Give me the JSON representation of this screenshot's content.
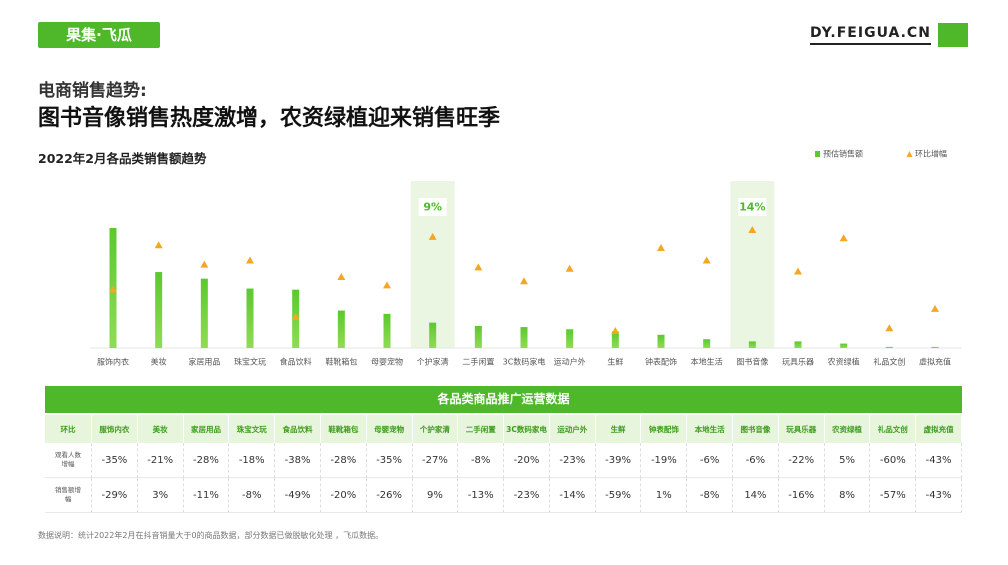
{
  "header": {
    "logo": "果集·飞瓜",
    "site": "DY.FEIGUA.CN",
    "kicker": "电商销售趋势:",
    "headline": "图书音像销售热度激增，农资绿植迎来销售旺季"
  },
  "chart_data": {
    "type": "bar",
    "title": "2022年2月各品类销售额趋势",
    "categories": [
      "服饰内衣",
      "美妆",
      "家居用品",
      "珠宝文玩",
      "食品饮料",
      "鞋靴箱包",
      "母婴宠物",
      "个护家清",
      "二手闲置",
      "3C数码家电",
      "运动户外",
      "生鲜",
      "钟表配饰",
      "本地生活",
      "图书音像",
      "玩具乐器",
      "农资绿植",
      "礼品文创",
      "虚拟充值"
    ],
    "series": [
      {
        "name": "预估销售额",
        "type": "bar",
        "color": "#5cc82e",
        "values": [
          109,
          69,
          63,
          54,
          53,
          34,
          31,
          23,
          20,
          19,
          17,
          15,
          12,
          8,
          6,
          6,
          4,
          1,
          1
        ]
      },
      {
        "name": "环比增幅",
        "type": "scatter",
        "color": "#f5a623",
        "values": [
          -29,
          3,
          -11,
          -8,
          -49,
          -20,
          -26,
          9,
          -13,
          -23,
          -14,
          -59,
          1,
          -8,
          14,
          -16,
          8,
          -57,
          -43
        ],
        "value_labels": [
          null,
          null,
          null,
          null,
          null,
          null,
          null,
          "9%",
          null,
          null,
          null,
          null,
          null,
          null,
          "14%",
          null,
          null,
          null,
          null
        ]
      }
    ]
  },
  "table": {
    "title": "各品类商品推广运营数据",
    "corner": "环比",
    "rows": [
      {
        "label": "观看人数增幅",
        "cells": [
          "-35%",
          "-21%",
          "-28%",
          "-18%",
          "-38%",
          "-28%",
          "-35%",
          "-27%",
          "-8%",
          "-20%",
          "-23%",
          "-39%",
          "-19%",
          "-6%",
          "-6%",
          "-22%",
          "5%",
          "-60%",
          "-43%"
        ]
      },
      {
        "label": "销售额增幅",
        "cells": [
          "-29%",
          "3%",
          "-11%",
          "-8%",
          "-49%",
          "-20%",
          "-26%",
          "9%",
          "-13%",
          "-23%",
          "-14%",
          "-59%",
          "1%",
          "-8%",
          "14%",
          "-16%",
          "8%",
          "-57%",
          "-43%"
        ]
      }
    ]
  },
  "footer": {
    "note": "数据说明：统计2022年2月在抖音销量大于0的商品数据，部分数据已做脱敏化处理 ，飞瓜数据。"
  }
}
